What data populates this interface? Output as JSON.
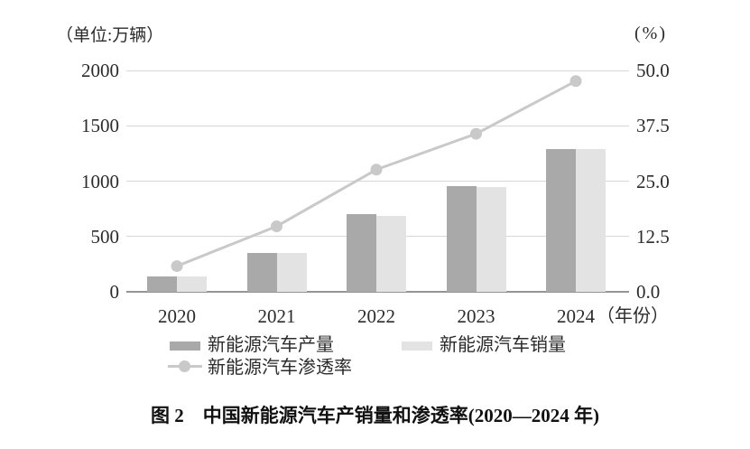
{
  "figure": {
    "caption": "图 2　中国新能源汽车产销量和渗透率(2020—2024 年)"
  },
  "colors": {
    "bar_production": "#a9a9a9",
    "bar_sales": "#e3e3e3",
    "line_penetration": "#c9c9c9",
    "gridline": "#d7d7d7",
    "axis_line": "#949494",
    "text": "#2b2b2b"
  },
  "chart_data": {
    "type": "combo_bar_line",
    "title": "中国新能源汽车产销量和渗透率(2020—2024 年)",
    "categories": [
      "2020",
      "2021",
      "2022",
      "2023",
      "2024"
    ],
    "series": [
      {
        "key": "production",
        "name": "新能源汽车产量",
        "kind": "bar",
        "axis": "left",
        "color": "#a9a9a9",
        "values": [
          137,
          355,
          706,
          959,
          1289
        ]
      },
      {
        "key": "sales",
        "name": "新能源汽车销量",
        "kind": "bar",
        "axis": "left",
        "color": "#e3e3e3",
        "values": [
          137,
          352,
          689,
          950,
          1287
        ]
      },
      {
        "key": "penetration",
        "name": "新能源汽车渗透率",
        "kind": "line",
        "axis": "right",
        "color": "#c9c9c9",
        "values": [
          5.8,
          14.8,
          27.6,
          35.7,
          47.6
        ]
      }
    ],
    "left_axis": {
      "unit_label": "（单位:万辆）",
      "tick_labels": [
        "2000",
        "1500",
        "1000",
        "500",
        "0"
      ],
      "tick_values": [
        2000,
        1500,
        1000,
        500,
        0
      ],
      "range": [
        0,
        2000
      ]
    },
    "right_axis": {
      "unit_label": "(%)",
      "tick_labels": [
        "50.0",
        "37.5",
        "25.0",
        "12.5",
        "0.0"
      ],
      "tick_values": [
        50,
        37.5,
        25,
        12.5,
        0
      ],
      "range": [
        0,
        50
      ]
    },
    "x_axis": {
      "suffix_label": "（年份）"
    },
    "legend_position": "bottom",
    "grid": true
  }
}
